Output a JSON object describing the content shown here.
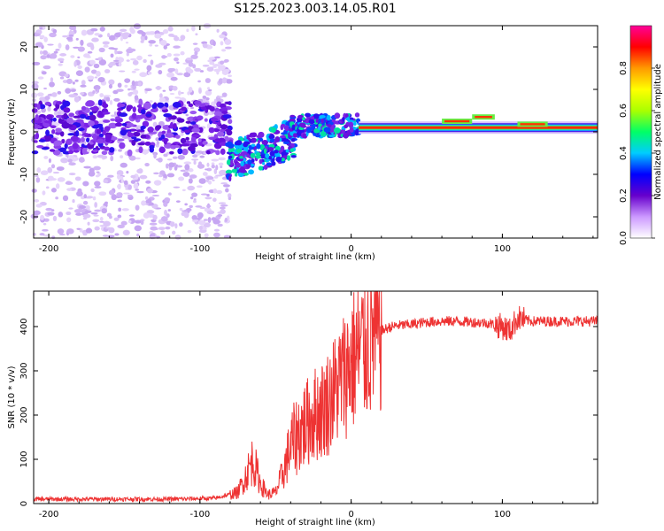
{
  "figure_title": "S125.2023.003.14.05.R01",
  "colors": {
    "snr_line": "#ee3333",
    "phase_band": "#7711dd",
    "axis": "#000000"
  },
  "chart_data": [
    {
      "type": "heatmap",
      "title": "",
      "xlabel": "Height of straight line (km)",
      "ylabel": "Frequency (Hz)",
      "xlim": [
        -210,
        163
      ],
      "ylim": [
        -25,
        25
      ],
      "x_ticks": [
        "-200",
        "-100",
        "0",
        "100"
      ],
      "y_ticks": [
        "-20",
        "-10",
        "0",
        "10",
        "20"
      ],
      "colorbar": {
        "label": "Normalized spectral amplitude",
        "range": [
          0,
          1
        ],
        "ticks": [
          "0.0",
          "0.2",
          "0.4",
          "0.6",
          "0.8"
        ],
        "colors": [
          "#ffffff",
          "#cc99ff",
          "#6600cc",
          "#0000ff",
          "#00ccff",
          "#00ff66",
          "#aaff00",
          "#ffff00",
          "#ff9900",
          "#ff0000",
          "#ff0099"
        ]
      },
      "features": {
        "scattered_noise_x": [
          -210,
          -80
        ],
        "dropout_x": [
          -80,
          -60
        ],
        "dip_center_x": -65,
        "dip_frequency": -7,
        "carrier_start_x": 5,
        "carrier_frequency": 1
      }
    },
    {
      "type": "line",
      "title": "",
      "xlabel": "Height of straight line (km)",
      "ylabel": "SNR (10 * v/v)",
      "xlim": [
        -210,
        163
      ],
      "ylim": [
        0,
        480
      ],
      "x_ticks": [
        "-200",
        "-100",
        "0",
        "100"
      ],
      "y_ticks": [
        "0",
        "100",
        "200",
        "300",
        "400"
      ],
      "series": [
        {
          "name": "SNR",
          "x": [
            -210,
            -180,
            -150,
            -120,
            -90,
            -75,
            -70,
            -65,
            -60,
            -55,
            -50,
            -45,
            -40,
            -35,
            -30,
            -25,
            -20,
            -15,
            -10,
            -5,
            0,
            5,
            10,
            15,
            20,
            25,
            30,
            40,
            50,
            60,
            70,
            80,
            90,
            100,
            105,
            110,
            115,
            120,
            140,
            163
          ],
          "values": [
            10,
            10,
            10,
            10,
            12,
            25,
            60,
            100,
            45,
            20,
            25,
            70,
            130,
            160,
            180,
            200,
            210,
            230,
            260,
            290,
            320,
            340,
            360,
            380,
            390,
            398,
            402,
            405,
            410,
            412,
            412,
            410,
            408,
            400,
            390,
            420,
            415,
            412,
            412,
            412
          ]
        }
      ]
    }
  ]
}
